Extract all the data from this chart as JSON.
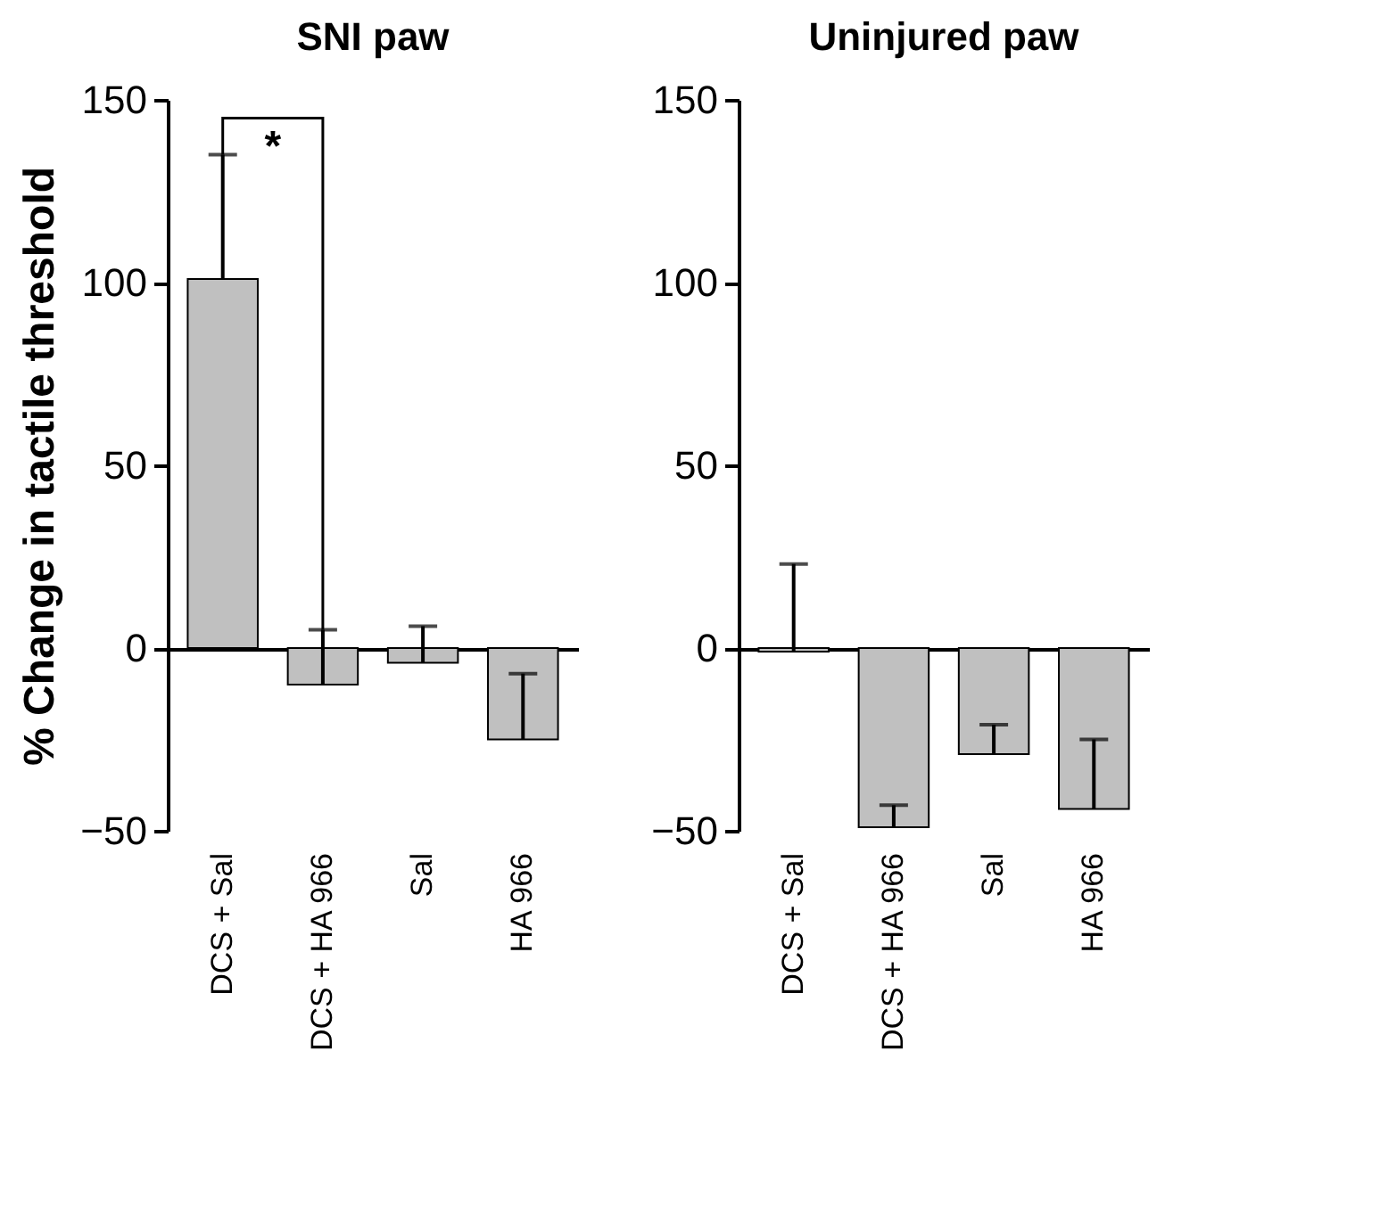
{
  "chart_data": [
    {
      "type": "bar",
      "title": "SNI paw",
      "ylabel": "% Change in tactile threshold",
      "categories": [
        "DCS + Sal",
        "DCS + HA 966",
        "Sal",
        "HA 966"
      ],
      "values": [
        101,
        -10,
        -4,
        -25
      ],
      "errors": [
        [
          101,
          135
        ],
        [
          -10,
          5
        ],
        [
          -4,
          6
        ],
        [
          -25,
          -7
        ]
      ],
      "color": "#c0c0c0",
      "ylim": [
        -50,
        150
      ],
      "yticks": [
        -50,
        0,
        50,
        100,
        150
      ],
      "annotations": [
        "*"
      ]
    },
    {
      "type": "bar",
      "title": "Uninjured paw",
      "categories": [
        "DCS + Sal",
        "DCS + HA 966",
        "Sal",
        "HA 966"
      ],
      "values": [
        -1,
        -49,
        -29,
        -44
      ],
      "errors": [
        [
          -1,
          23
        ],
        [
          -49,
          -43
        ],
        [
          -29,
          -21
        ],
        [
          -44,
          -25
        ]
      ],
      "color": "#c0c0c0",
      "ylim": [
        -50,
        150
      ],
      "yticks": [
        -50,
        0,
        50,
        100,
        150
      ]
    }
  ]
}
